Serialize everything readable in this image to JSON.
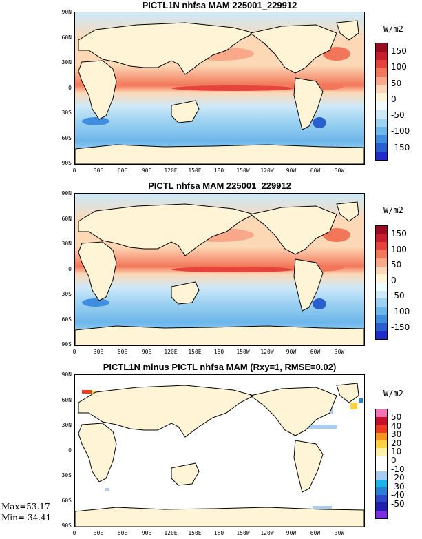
{
  "panels": [
    {
      "title": "PICTL1N nhfsa MAM 225001_229912",
      "unit": "W/m2",
      "colorbar": {
        "labels": [
          "150",
          "100",
          "50",
          "0",
          "-50",
          "-100",
          "-150"
        ],
        "colors": [
          "#9a0b1f",
          "#c81e2c",
          "#e6433d",
          "#f2775a",
          "#f9a98a",
          "#fcd8b6",
          "#fff4d6",
          "#eefbff",
          "#cde9f8",
          "#9ed2f2",
          "#6cb6ea",
          "#3f8ee0",
          "#2a5fd0",
          "#1f2ccc"
        ]
      },
      "style": "full"
    },
    {
      "title": "PICTL nhfsa MAM 225001_229912",
      "unit": "W/m2",
      "colorbar": {
        "labels": [
          "150",
          "100",
          "50",
          "0",
          "-50",
          "-100",
          "-150"
        ],
        "colors": [
          "#9a0b1f",
          "#c81e2c",
          "#e6433d",
          "#f2775a",
          "#f9a98a",
          "#fcd8b6",
          "#fff4d6",
          "#eefbff",
          "#cde9f8",
          "#9ed2f2",
          "#6cb6ea",
          "#3f8ee0",
          "#2a5fd0",
          "#1f2ccc"
        ]
      },
      "style": "full"
    },
    {
      "title": "PICTL1N minus PICTL nhfsa MAM (Rxy=1, RMSE=0.02)",
      "unit": "W/m2",
      "colorbar": {
        "labels": [
          "50",
          "40",
          "30",
          "20",
          "10",
          "0",
          "-10",
          "-20",
          "-30",
          "-40",
          "-50"
        ],
        "colors": [
          "#f472b6",
          "#c8102e",
          "#f03c1e",
          "#f7941d",
          "#ffd23f",
          "#fff2a8",
          "#ffffff",
          "#ffffff",
          "#a9cdf0",
          "#1fb4e8",
          "#2b7fd6",
          "#2b49c8",
          "#2020b0",
          "#7a2ee0"
        ]
      },
      "style": "diff"
    }
  ],
  "lat_labels": [
    "90N",
    "60N",
    "30N",
    "0",
    "30S",
    "60S",
    "90S"
  ],
  "lon_labels": [
    "0",
    "30E",
    "60E",
    "90E",
    "120E",
    "150E",
    "180",
    "150W",
    "120W",
    "90W",
    "60W",
    "30W"
  ],
  "stats": {
    "max": "Max=53.17",
    "min": "Min=-34.41"
  }
}
